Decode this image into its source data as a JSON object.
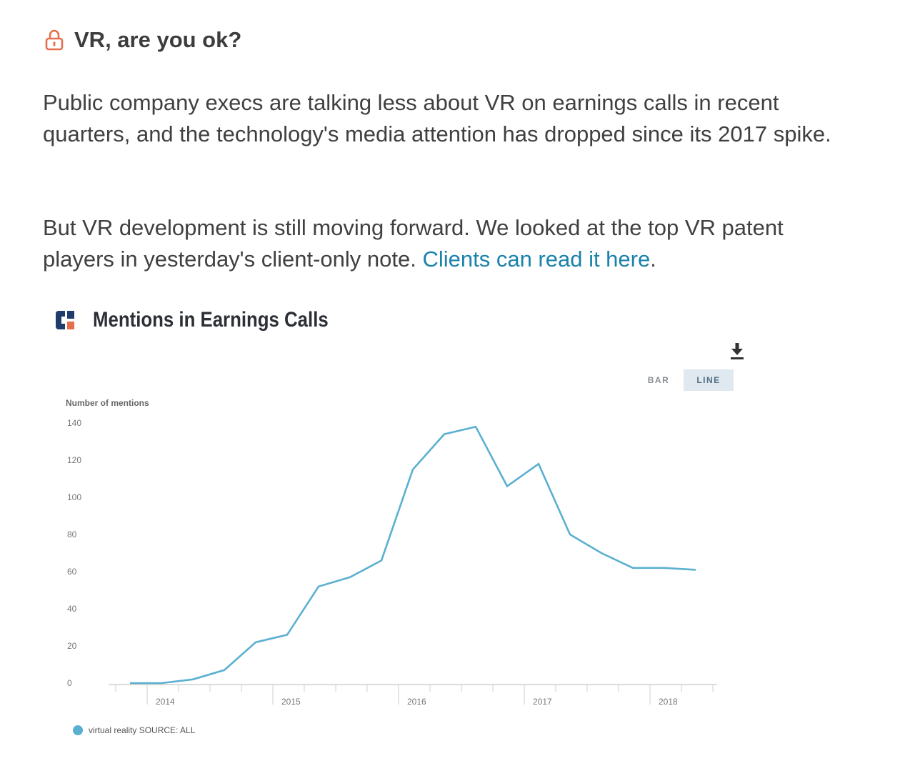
{
  "article": {
    "heading": "VR, are you ok?",
    "paragraph1": "Public company execs are talking less about VR on earnings calls in recent quarters, and the technology's media attention has dropped since its 2017 spike.",
    "paragraph2_text": "But VR development is still moving forward. We looked at the top VR patent players in yesterday's client-only note. ",
    "paragraph2_link": "Clients can read it here",
    "paragraph2_end": "."
  },
  "icons": {
    "lock": "lock-icon",
    "logo": "cb-insights-logo-icon",
    "download": "download-icon"
  },
  "toggle": {
    "bar_label": "BAR",
    "line_label": "LINE",
    "active": "LINE"
  },
  "colors": {
    "accent_lock": "#e4704b",
    "link": "#1a82ab",
    "series": "#5ab0d0"
  },
  "chart_data": {
    "type": "line",
    "title": "Mentions in Earnings Calls",
    "ylabel": "Number of mentions",
    "xlabel": "",
    "ylim": [
      0,
      140
    ],
    "yticks": [
      0,
      20,
      40,
      60,
      80,
      100,
      120,
      140
    ],
    "xtick_labels": [
      "2014",
      "2015",
      "2016",
      "2017",
      "2018"
    ],
    "x": [
      "2013 Q4",
      "2014 Q1",
      "2014 Q2",
      "2014 Q3",
      "2014 Q4",
      "2015 Q1",
      "2015 Q2",
      "2015 Q3",
      "2015 Q4",
      "2016 Q1",
      "2016 Q2",
      "2016 Q3",
      "2016 Q4",
      "2017 Q1",
      "2017 Q2",
      "2017 Q3",
      "2017 Q4",
      "2018 Q1",
      "2018 Q2"
    ],
    "series": [
      {
        "name": "virtual reality SOURCE: ALL",
        "values": [
          0,
          0,
          2,
          7,
          22,
          26,
          52,
          57,
          66,
          115,
          134,
          138,
          106,
          118,
          80,
          70,
          62,
          62,
          61
        ]
      }
    ],
    "legend": "bottom-left"
  }
}
